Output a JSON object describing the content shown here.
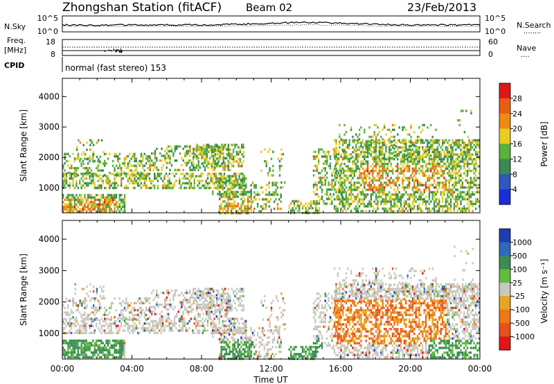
{
  "header": {
    "station": "Zhongshan Station (fitACF)",
    "beam": "Beam 02",
    "date": "23/Feb/2013"
  },
  "noise_panel": {
    "left_label": "N.Sky",
    "right_label": "N.Search",
    "right_marker": "........",
    "left_ticks": [
      "10^5",
      "10^0"
    ],
    "right_ticks": [
      "10^5",
      "10^0"
    ]
  },
  "freq_panel": {
    "left_label_line1": "Freq.",
    "left_label_line2": "[MHz]",
    "right_label": "Nave",
    "right_marker": "....",
    "left_ticks": [
      "18",
      "8"
    ],
    "right_ticks": [
      "60",
      "0"
    ]
  },
  "cpid": {
    "label": "CPID",
    "text": "normal (fast stereo) 153"
  },
  "chart_data": [
    {
      "type": "heatmap",
      "quantity": "Power",
      "ylabel": "Slant Range [km]",
      "xlabel": "",
      "ylim": [
        180,
        4600
      ],
      "yticks": [
        1000,
        2000,
        3000,
        4000
      ],
      "colorbar_label": "Power [dB]",
      "colorbar_ticks": [
        "4",
        "8",
        "12",
        "16",
        "20",
        "24",
        "28"
      ],
      "colorbar_colors": [
        "#1a2ddc",
        "#2f57c0",
        "#3a8a52",
        "#58b33a",
        "#e9cc1f",
        "#f08a14",
        "#e85d12",
        "#e11717"
      ]
    },
    {
      "type": "heatmap",
      "quantity": "Velocity",
      "ylabel": "Slant Range [km]",
      "xlabel": "Time UT",
      "ylim": [
        180,
        4600
      ],
      "yticks": [
        1000,
        2000,
        3000,
        4000
      ],
      "xticks": [
        "00:00",
        "04:00",
        "08:00",
        "12:00",
        "16:00",
        "20:00",
        "00:00"
      ],
      "colorbar_label": "Velocity [m s⁻¹]",
      "colorbar_ticks": [
        "1000",
        "500",
        "100",
        "25",
        "-25",
        "-100",
        "-500",
        "-1000"
      ],
      "colorbar_colors": [
        "#1f3bb3",
        "#2f6ab8",
        "#3c8a55",
        "#5fbd3c",
        "#c8c8c0",
        "#e7a520",
        "#f07616",
        "#e8501a",
        "#e11717"
      ]
    }
  ]
}
